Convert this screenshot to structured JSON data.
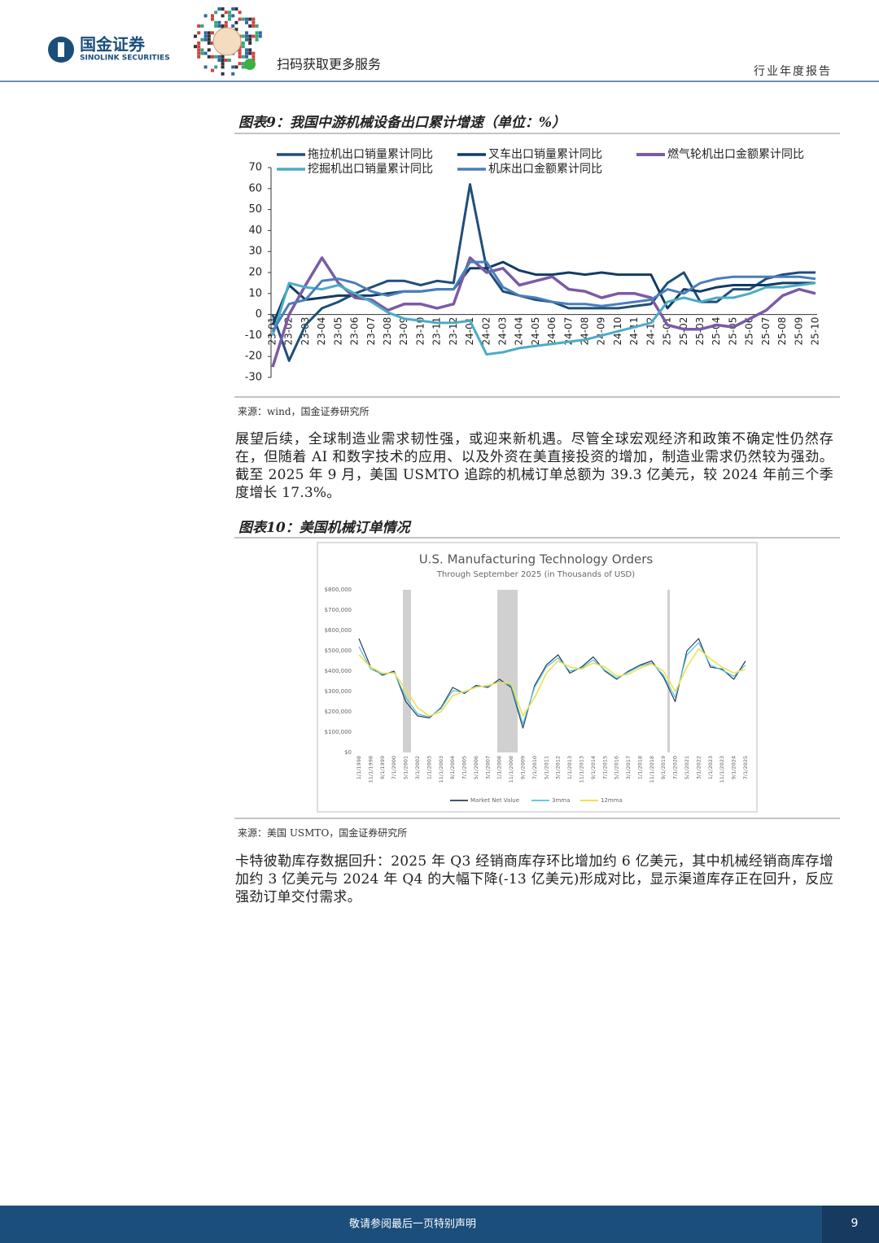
{
  "header": {
    "logo_text": "国金证券",
    "logo_subtext": "SINOLINK SECURITIES",
    "qr_caption": "扫码获取更多服务",
    "report_type": "行业年度报告"
  },
  "figures": [
    {
      "caption": "图表9：我国中游机械设备出口累计增速（单位：%）",
      "source": "来源：wind，国金证券研究所"
    },
    {
      "caption": "图表10：美国机械订单情况",
      "source": "来源：美国 USMTO，国金证券研究所"
    }
  ],
  "paragraphs": [
    "展望后续，全球制造业需求韧性强，或迎来新机遇。尽管全球宏观经济和政策不确定性仍然存在，但随着 AI 和数字技术的应用、以及外资在美直接投资的增加，制造业需求仍然较为强劲。截至 2025 年 9 月，美国 USMTO 追踪的机械订单总额为 39.3 亿美元，较 2024 年前三个季度增长 17.3%。",
    "卡特彼勒库存数据回升：2025 年 Q3 经销商库存环比增加约 6 亿美元，其中机械经销商库存增加约 3 亿美元与 2024 年 Q4 的大幅下降(-13 亿美元)形成对比，显示渠道库存正在回升，反应强劲订单交付需求。"
  ],
  "footer": {
    "disclaimer": "敬请参阅最后一页特别声明",
    "page_number": "9"
  },
  "chart_data": [
    {
      "type": "line",
      "categories": [
        "23-01",
        "23-02",
        "23-03",
        "23-04",
        "23-05",
        "23-06",
        "23-07",
        "23-08",
        "23-09",
        "23-10",
        "23-11",
        "23-12",
        "24-01",
        "24-02",
        "24-03",
        "24-04",
        "24-05",
        "24-06",
        "24-07",
        "24-08",
        "24-09",
        "24-10",
        "24-11",
        "24-12",
        "25-01",
        "25-02",
        "25-03",
        "25-04",
        "25-05",
        "25-06",
        "25-07",
        "25-08",
        "25-09",
        "25-10"
      ],
      "ylim": [
        -30,
        70
      ],
      "yticks": [
        -30,
        -20,
        -10,
        0,
        10,
        20,
        30,
        40,
        50,
        60,
        70
      ],
      "grid": false,
      "legend": "top",
      "series": [
        {
          "name": "拖拉机出口销量累计同比",
          "color": "#1f4e79",
          "values": [
            0,
            -22,
            -5,
            3,
            6,
            10,
            13,
            16,
            16,
            14,
            16,
            15,
            62,
            22,
            11,
            9,
            7,
            6,
            3,
            3,
            3,
            3,
            4,
            5,
            15,
            20,
            6,
            6,
            12,
            12,
            17,
            19,
            20,
            20
          ]
        },
        {
          "name": "叉车出口销量累计同比",
          "color": "#123c62",
          "values": [
            -5,
            14,
            7,
            8,
            9,
            9,
            9,
            10,
            11,
            11,
            12,
            12,
            22,
            22,
            25,
            21,
            19,
            19,
            20,
            19,
            20,
            19,
            19,
            19,
            3,
            12,
            11,
            13,
            14,
            14,
            14,
            15,
            15,
            15
          ]
        },
        {
          "name": "燃气轮机出口金额累计同比",
          "color": "#7b5aa6",
          "values": [
            -25,
            0,
            14,
            27,
            15,
            8,
            7,
            2,
            5,
            5,
            3,
            5,
            27,
            20,
            22,
            14,
            16,
            18,
            12,
            11,
            8,
            10,
            10,
            8,
            -5,
            -7,
            -7,
            -5,
            -6,
            -2,
            2,
            9,
            12,
            10
          ]
        },
        {
          "name": "挖掘机出口销量累计同比",
          "color": "#4bacc6",
          "values": [
            -10,
            15,
            13,
            12,
            14,
            10,
            6,
            1,
            -2,
            -3,
            -4,
            -4,
            -3,
            -19,
            -18,
            -16,
            -15,
            -14,
            -13,
            -12,
            -10,
            -8,
            -6,
            -4,
            6,
            8,
            6,
            8,
            8,
            10,
            13,
            13,
            14,
            15
          ]
        },
        {
          "name": "机床出口金额累计同比",
          "color": "#4a7ebb",
          "values": [
            -8,
            5,
            7,
            16,
            17,
            15,
            11,
            9,
            11,
            11,
            12,
            12,
            25,
            25,
            13,
            9,
            8,
            6,
            5,
            5,
            4,
            5,
            6,
            7,
            12,
            10,
            15,
            17,
            18,
            18,
            18,
            18,
            18,
            17
          ]
        }
      ]
    },
    {
      "type": "line",
      "title": "U.S. Manufacturing Technology Orders",
      "subtitle": "Through September 2025 (in Thousands of USD)",
      "categories": [
        "1/1/1998",
        "11/1/1998",
        "9/1/1999",
        "7/1/2000",
        "5/1/2001",
        "3/1/2002",
        "1/1/2003",
        "11/1/2003",
        "9/1/2004",
        "7/1/2005",
        "5/1/2006",
        "3/1/2007",
        "1/1/2008",
        "11/1/2008",
        "9/1/2009",
        "7/1/2010",
        "5/1/2011",
        "3/1/2012",
        "1/1/2013",
        "11/1/2013",
        "9/1/2014",
        "7/1/2015",
        "5/1/2016",
        "3/1/2017",
        "1/1/2018",
        "11/1/2018",
        "9/1/2019",
        "7/1/2020",
        "5/1/2021",
        "3/1/2022",
        "1/1/2023",
        "11/1/2023",
        "9/1/2024",
        "7/1/2025"
      ],
      "ylim": [
        0,
        800000
      ],
      "yticks": [
        {
          "value": 0,
          "label": "$0"
        },
        {
          "value": 100000,
          "label": "$100,000"
        },
        {
          "value": 200000,
          "label": "$200,000"
        },
        {
          "value": 300000,
          "label": "$300,000"
        },
        {
          "value": 400000,
          "label": "$400,000"
        },
        {
          "value": 500000,
          "label": "$500,000"
        },
        {
          "value": 600000,
          "label": "$600,000"
        },
        {
          "value": 700000,
          "label": "$700,000"
        },
        {
          "value": 800000,
          "label": "$800,000"
        }
      ],
      "grid": false,
      "legend": "bottom",
      "series": [
        {
          "name": "Market Net Value",
          "color": "#2e3a5c",
          "values": [
            560000,
            420000,
            380000,
            400000,
            250000,
            180000,
            170000,
            220000,
            320000,
            290000,
            330000,
            320000,
            360000,
            320000,
            120000,
            330000,
            430000,
            480000,
            390000,
            420000,
            470000,
            400000,
            360000,
            400000,
            430000,
            450000,
            370000,
            250000,
            500000,
            560000,
            420000,
            410000,
            360000,
            450000
          ]
        },
        {
          "name": "3mma",
          "color": "#4bc4d6",
          "values": [
            520000,
            410000,
            385000,
            395000,
            270000,
            190000,
            175000,
            215000,
            305000,
            295000,
            325000,
            325000,
            350000,
            330000,
            140000,
            320000,
            420000,
            465000,
            400000,
            415000,
            455000,
            405000,
            365000,
            395000,
            425000,
            440000,
            380000,
            270000,
            480000,
            540000,
            430000,
            405000,
            375000,
            430000
          ]
        },
        {
          "name": "12mma",
          "color": "#f0e050",
          "values": [
            480000,
            420000,
            390000,
            390000,
            310000,
            220000,
            180000,
            200000,
            280000,
            300000,
            320000,
            330000,
            345000,
            340000,
            180000,
            270000,
            390000,
            450000,
            420000,
            410000,
            440000,
            420000,
            375000,
            385000,
            415000,
            435000,
            400000,
            300000,
            420000,
            510000,
            460000,
            420000,
            390000,
            410000
          ]
        }
      ]
    }
  ]
}
